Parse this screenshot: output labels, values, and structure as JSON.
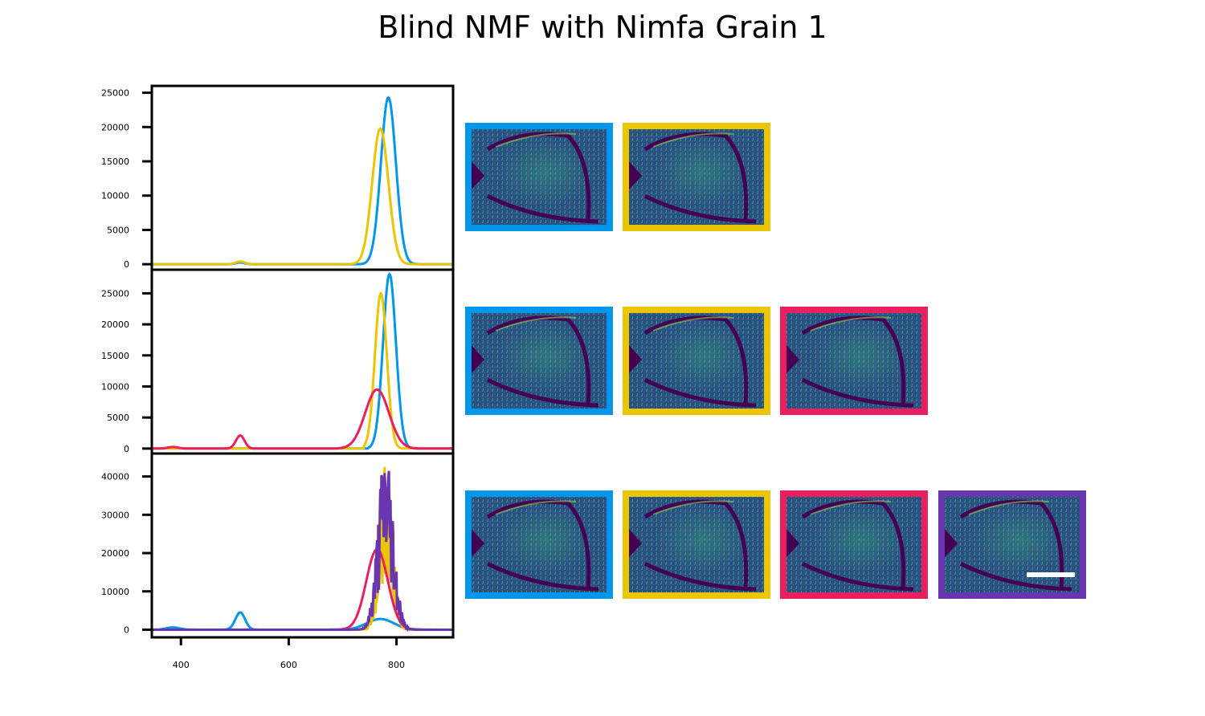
{
  "title": "Blind NMF with Nimfa Grain 1",
  "colors": {
    "blue": "#0097EB",
    "yellow": "#EBC500",
    "pink": "#EB1F5E",
    "purple": "#6A36B0"
  },
  "chart_data": [
    {
      "type": "line",
      "xlim": [
        346,
        905
      ],
      "ylim": [
        -800,
        26000
      ],
      "yticks": [
        0,
        5000,
        10000,
        15000,
        20000,
        25000
      ],
      "grid": false,
      "series": [
        {
          "color": "blue",
          "peaks": [
            [
              785,
              24300,
              14
            ],
            [
              510,
              250,
              8
            ]
          ]
        },
        {
          "color": "yellow",
          "peaks": [
            [
              770,
              19800,
              15
            ],
            [
              510,
              400,
              8
            ]
          ]
        }
      ],
      "images": [
        "blue",
        "yellow"
      ]
    },
    {
      "type": "line",
      "xlim": [
        346,
        905
      ],
      "ylim": [
        -800,
        28800
      ],
      "yticks": [
        0,
        5000,
        10000,
        15000,
        20000,
        25000
      ],
      "grid": false,
      "series": [
        {
          "color": "blue",
          "peaks": [
            [
              787,
              28100,
              12
            ]
          ],
          "cutoff": 748
        },
        {
          "color": "yellow",
          "peaks": [
            [
              771,
              25000,
              11
            ]
          ],
          "cutoff": 740
        },
        {
          "color": "pink",
          "peaks": [
            [
              764,
              9500,
              22
            ],
            [
              510,
              2100,
              8
            ],
            [
              385,
              250,
              10
            ]
          ]
        }
      ],
      "images": [
        "blue",
        "yellow",
        "pink"
      ]
    },
    {
      "type": "line",
      "xlim": [
        346,
        905
      ],
      "ylim": [
        -2000,
        46000
      ],
      "yticks": [
        0,
        10000,
        20000,
        30000,
        40000
      ],
      "xticks": [
        400,
        600,
        800
      ],
      "grid": false,
      "series": [
        {
          "color": "blue",
          "peaks": [
            [
              510,
              4500,
              9
            ],
            [
              385,
              600,
              12
            ],
            [
              770,
              2800,
              25
            ]
          ]
        },
        {
          "color": "yellow",
          "peaks": [
            [
              780,
              30000,
              12
            ]
          ],
          "noisy": true
        },
        {
          "color": "pink",
          "peaks": [
            [
              764,
              21000,
              20
            ]
          ]
        },
        {
          "color": "purple",
          "peaks": [
            [
              780,
              33000,
              14
            ]
          ],
          "noisy": true
        }
      ],
      "images": [
        "blue",
        "yellow",
        "pink",
        "purple"
      ]
    }
  ]
}
